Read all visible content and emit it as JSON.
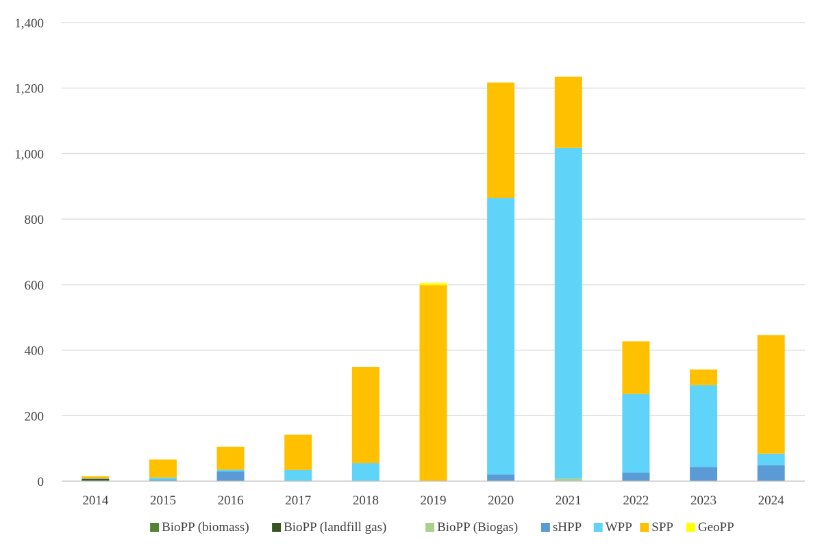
{
  "chart_data": {
    "type": "bar",
    "stacked": true,
    "title": "",
    "xlabel": "",
    "ylabel": "",
    "ylim": [
      0,
      1400
    ],
    "yticks": [
      0,
      200,
      400,
      600,
      800,
      1000,
      1200,
      1400
    ],
    "ytick_labels": [
      "0",
      "200",
      "400",
      "600",
      "800",
      "1,000",
      "1,200",
      "1,400"
    ],
    "grid": true,
    "legend_position": "bottom",
    "categories": [
      "2014",
      "2015",
      "2016",
      "2017",
      "2018",
      "2019",
      "2020",
      "2021",
      "2022",
      "2023",
      "2024"
    ],
    "series": [
      {
        "name": "BioPP (biomass)",
        "color": "#548235",
        "values": [
          2,
          0,
          0,
          0,
          0,
          0,
          0,
          0,
          0,
          0,
          0
        ]
      },
      {
        "name": "BioPP (landfill gas)",
        "color": "#375623",
        "values": [
          5,
          0,
          0,
          0,
          0,
          0,
          0,
          0,
          0,
          0,
          0
        ]
      },
      {
        "name": "BioPP (Biogas)",
        "color": "#a9d18e",
        "values": [
          1,
          2,
          0,
          0,
          0,
          0,
          0,
          8,
          0,
          0,
          0
        ]
      },
      {
        "name": "sHPP",
        "color": "#5b9bd5",
        "values": [
          1,
          3,
          30,
          0,
          0,
          0,
          20,
          0,
          26,
          43,
          48
        ]
      },
      {
        "name": "WPP",
        "color": "#5fd3f8",
        "values": [
          0,
          6,
          5,
          34,
          55,
          0,
          845,
          1010,
          240,
          250,
          36
        ]
      },
      {
        "name": "SPP",
        "color": "#ffc000",
        "values": [
          6,
          55,
          70,
          108,
          294,
          598,
          352,
          217,
          161,
          48,
          362
        ]
      },
      {
        "name": "GeoPP",
        "color": "#ffff00",
        "values": [
          0,
          0,
          0,
          0,
          0,
          7,
          0,
          0,
          0,
          0,
          0
        ]
      }
    ]
  }
}
